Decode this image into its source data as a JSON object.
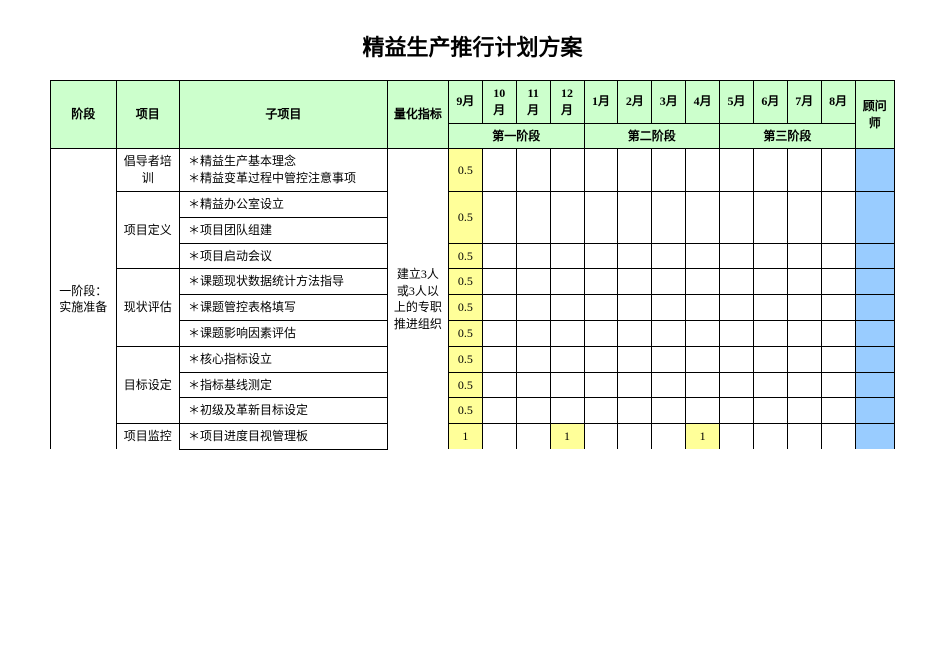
{
  "title": "精益生产推行计划方案",
  "columns": {
    "phase": "阶段",
    "project": "项目",
    "subproject": "子项目",
    "metric": "量化指标",
    "advisor": "顾问师",
    "months": [
      "9月",
      "10月",
      "11月",
      "12月",
      "1月",
      "2月",
      "3月",
      "4月",
      "5月",
      "6月",
      "7月",
      "8月"
    ],
    "phase_groups": [
      "第一阶段",
      "第二阶段",
      "第三阶段"
    ]
  },
  "phase1_label": "一阶段：实施准备",
  "metric_text": "建立3人或3人以上的专职推进组织",
  "groups": [
    {
      "name": "倡导者培训",
      "items": [
        {
          "text": "＊精益生产基本理念\n＊精益变革过程中管控注意事项",
          "vals": [
            "0.5",
            "",
            "",
            "",
            "",
            "",
            "",
            "",
            "",
            "",
            "",
            ""
          ]
        }
      ]
    },
    {
      "name": "项目定义",
      "items": [
        {
          "text": "＊精益办公室设立",
          "vals": [
            "0.5",
            "",
            "",
            "",
            "",
            "",
            "",
            "",
            "",
            "",
            "",
            ""
          ],
          "merge_down": 1
        },
        {
          "text": "＊项目团队组建",
          "vals": null
        },
        {
          "text": "＊项目启动会议",
          "vals": [
            "0.5",
            "",
            "",
            "",
            "",
            "",
            "",
            "",
            "",
            "",
            "",
            ""
          ]
        }
      ]
    },
    {
      "name": "现状评估",
      "items": [
        {
          "text": "＊课题现状数据统计方法指导",
          "vals": [
            "0.5",
            "",
            "",
            "",
            "",
            "",
            "",
            "",
            "",
            "",
            "",
            ""
          ]
        },
        {
          "text": "＊课题管控表格填写",
          "vals": [
            "0.5",
            "",
            "",
            "",
            "",
            "",
            "",
            "",
            "",
            "",
            "",
            ""
          ]
        },
        {
          "text": "＊课题影响因素评估",
          "vals": [
            "0.5",
            "",
            "",
            "",
            "",
            "",
            "",
            "",
            "",
            "",
            "",
            ""
          ]
        }
      ]
    },
    {
      "name": "目标设定",
      "items": [
        {
          "text": "＊核心指标设立",
          "vals": [
            "0.5",
            "",
            "",
            "",
            "",
            "",
            "",
            "",
            "",
            "",
            "",
            ""
          ]
        },
        {
          "text": "＊指标基线测定",
          "vals": [
            "0.5",
            "",
            "",
            "",
            "",
            "",
            "",
            "",
            "",
            "",
            "",
            ""
          ]
        },
        {
          "text": "＊初级及革新目标设定",
          "vals": [
            "0.5",
            "",
            "",
            "",
            "",
            "",
            "",
            "",
            "",
            "",
            "",
            ""
          ]
        }
      ]
    },
    {
      "name": "项目监控",
      "items": [
        {
          "text": "＊项目进度目视管理板",
          "vals": [
            "1",
            "",
            "",
            "1",
            "",
            "",
            "",
            "1",
            "",
            "",
            "",
            ""
          ]
        }
      ]
    }
  ],
  "colors": {
    "header_bg": "#ccffcc",
    "highlight_bg": "#ffff99",
    "advisor_bg": "#99ccff",
    "border": "#000000"
  }
}
